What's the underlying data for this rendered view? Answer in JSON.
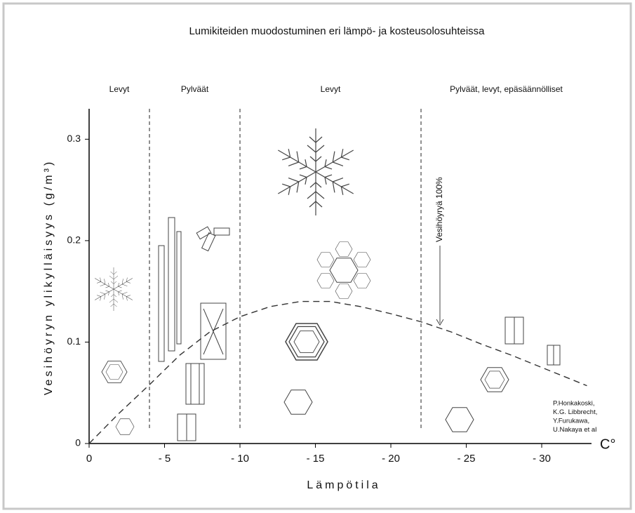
{
  "chart_data": {
    "type": "line",
    "title": "Lumikiteiden muodostuminen eri lämpö- ja kosteusolosuhteissa",
    "x_label": "Lämpötila",
    "y_label": "Vesihöyryn ylikylläisyys (g/m³)",
    "x_unit": "C°",
    "x": [
      0,
      -2,
      -4,
      -6,
      -8,
      -10,
      -12,
      -14,
      -16,
      -18,
      -20,
      -22,
      -24,
      -26,
      -28,
      -30,
      -32,
      -33
    ],
    "values": [
      0,
      0.03,
      0.058,
      0.087,
      0.11,
      0.125,
      0.135,
      0.14,
      0.14,
      0.135,
      0.128,
      0.12,
      0.11,
      0.098,
      0.087,
      0.075,
      0.063,
      0.057
    ],
    "color": "#333333",
    "line_style": "dashed",
    "xlim": [
      0,
      -33.3
    ],
    "ylim": [
      0,
      0.33
    ],
    "xticks": [
      0,
      {
        "value": -5,
        "label": "- 5"
      },
      {
        "value": -10,
        "label": "- 10"
      },
      {
        "value": -15,
        "label": "- 15"
      },
      {
        "value": -20,
        "label": "- 20"
      },
      {
        "value": -25,
        "label": "- 25"
      },
      {
        "value": -30,
        "label": "- 30"
      }
    ],
    "yticks": [
      0,
      0.1,
      0.2,
      0.3
    ],
    "regions": [
      {
        "label": "Levyt",
        "from": 0,
        "to": -4
      },
      {
        "label": "Pylväät",
        "from": -4,
        "to": -10
      },
      {
        "label": "Levyt",
        "from": -10,
        "to": -22
      },
      {
        "label": "Pylväät, levyt, epäsäännölliset",
        "from": -22,
        "to": -33.3
      }
    ],
    "annotation": "Vesihöyryä 100%",
    "credits": [
      "P.Honkakoski,",
      "K.G. Libbrecht,",
      "Y.Furukawa,",
      "U.Nakaya et al"
    ]
  }
}
